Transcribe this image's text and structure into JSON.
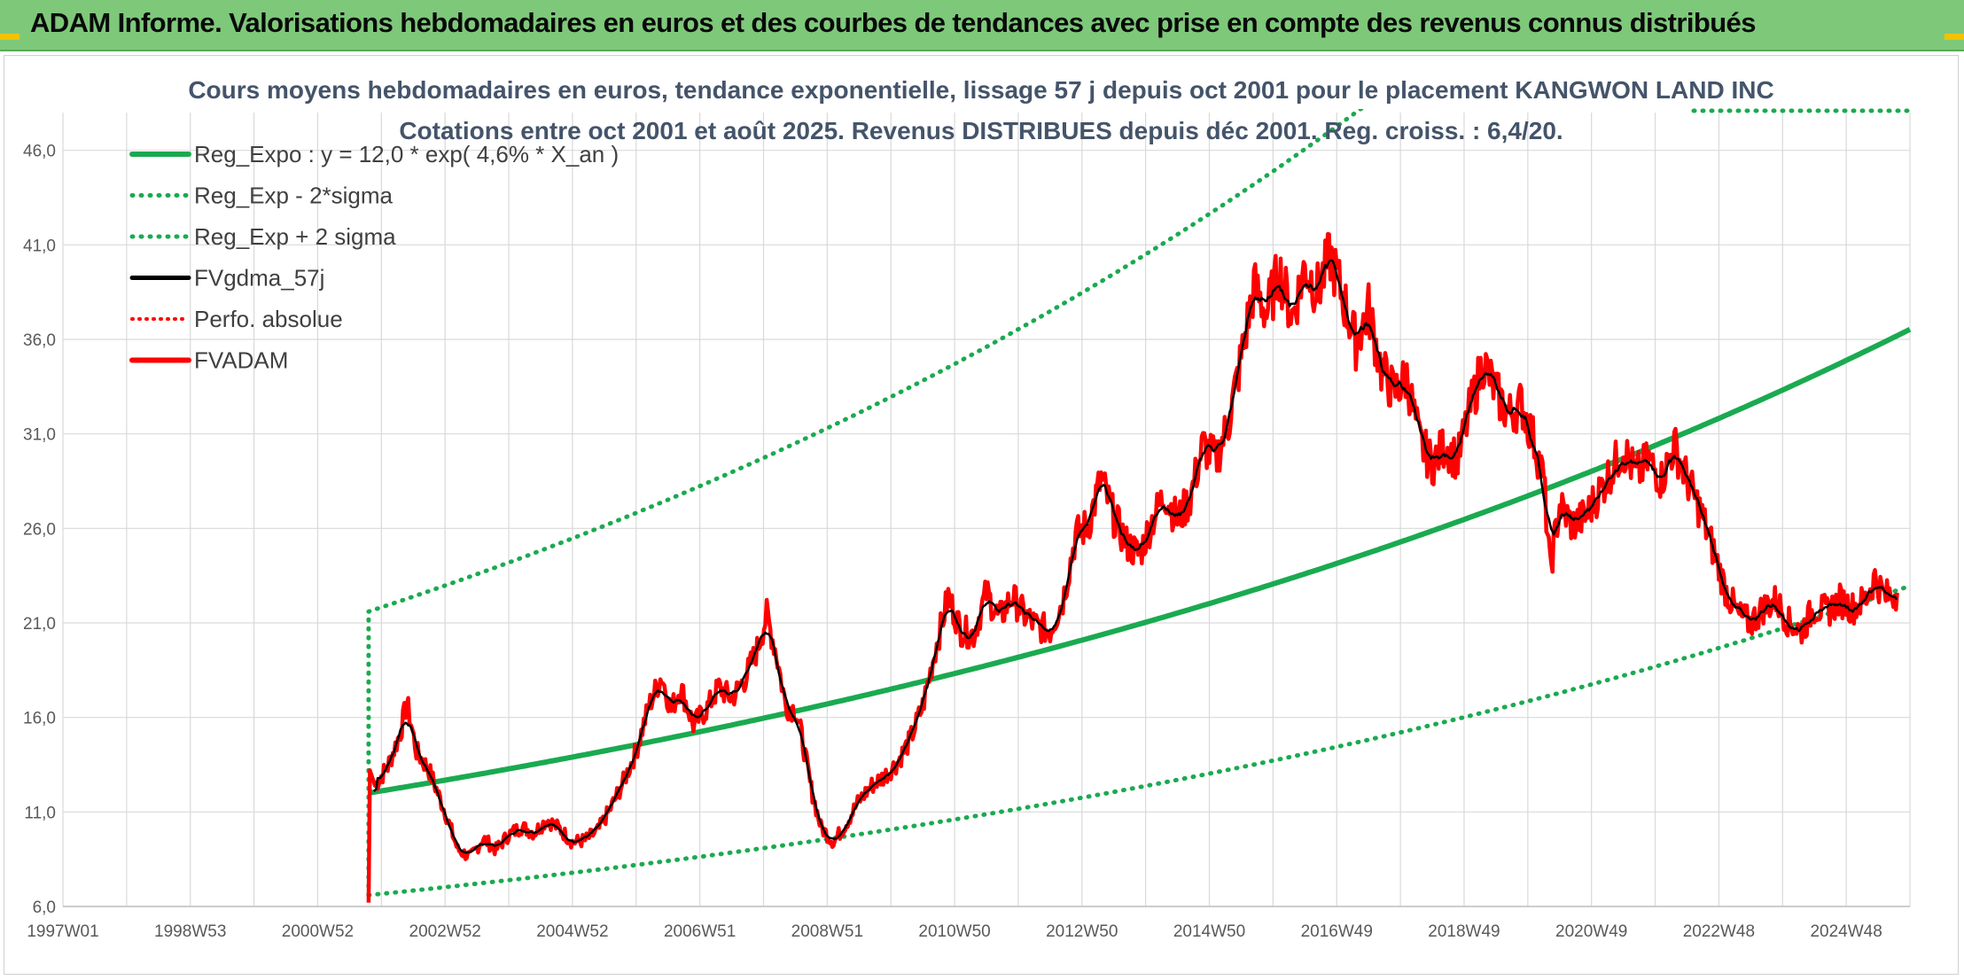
{
  "banner": {
    "title": "ADAM Informe. Valorisations hebdomadaires en euros et des courbes de tendances avec prise en compte des revenus connus distribués"
  },
  "colors": {
    "banner_bg": "#7ec87a",
    "trend": "#1aaa50",
    "price": "#ff0000",
    "smooth": "#000000",
    "grid": "#d9d9d9"
  },
  "chart_data": {
    "type": "line",
    "title_line1": "Cours moyens hebdomadaires en euros, tendance exponentielle, lissage 57 j depuis oct 2001 pour le placement KANGWON LAND INC",
    "title_line2": "Cotations entre oct 2001 et août 2025. Revenus DISTRIBUES depuis déc 2001. Reg. croiss. : 6,4/20.",
    "x_tick_labels": [
      "1997W01",
      "1998W53",
      "2000W52",
      "2002W52",
      "2004W52",
      "2006W51",
      "2008W51",
      "2010W50",
      "2012W50",
      "2014W50",
      "2016W49",
      "2018W49",
      "2020W49",
      "2022W48",
      "2024W48"
    ],
    "x_tick_years": [
      1997.0,
      1999.0,
      2001.0,
      2003.0,
      2005.0,
      2007.0,
      2009.0,
      2011.0,
      2013.0,
      2015.0,
      2017.0,
      2019.0,
      2021.0,
      2023.0,
      2025.0
    ],
    "x_range": [
      1997.0,
      2026.0
    ],
    "y_tick_labels": [
      "6,0",
      "11,0",
      "16,0",
      "21,0",
      "26,0",
      "31,0",
      "36,0",
      "41,0",
      "46,0"
    ],
    "y_ticks": [
      6,
      11,
      16,
      21,
      26,
      31,
      36,
      41,
      46
    ],
    "ylim": [
      6,
      48
    ],
    "grid": true,
    "legend_position": "top-left",
    "trend": {
      "start_year": 2001.8,
      "end_year": 2026.0,
      "a": 12.0,
      "b": 0.046,
      "sigma_low_start": 6.6,
      "sigma_high_start": 21.6
    },
    "series": [
      {
        "name": "Reg_Expo : y = 12,0 * exp( 4,6% *  X_an )",
        "style": "solid-green"
      },
      {
        "name": "Reg_Exp - 2*sigma",
        "style": "dotted-green"
      },
      {
        "name": "Reg_Exp + 2 sigma",
        "style": "dotted-green"
      },
      {
        "name": "FVgdma_57j",
        "style": "solid-black"
      },
      {
        "name": "Perfo. absolue",
        "style": "dotted-red"
      },
      {
        "name": "FVADAM",
        "style": "solid-red",
        "points": [
          [
            2001.8,
            6.2
          ],
          [
            2001.82,
            13.2
          ],
          [
            2001.9,
            12.4
          ],
          [
            2002.1,
            13.4
          ],
          [
            2002.3,
            15.2
          ],
          [
            2002.4,
            16.8
          ],
          [
            2002.55,
            14.2
          ],
          [
            2002.75,
            13.2
          ],
          [
            2003.0,
            11.0
          ],
          [
            2003.2,
            9.0
          ],
          [
            2003.4,
            8.6
          ],
          [
            2003.6,
            9.6
          ],
          [
            2003.8,
            9.0
          ],
          [
            2004.0,
            9.8
          ],
          [
            2004.2,
            10.2
          ],
          [
            2004.4,
            9.9
          ],
          [
            2004.6,
            10.6
          ],
          [
            2004.8,
            10.1
          ],
          [
            2005.0,
            9.4
          ],
          [
            2005.2,
            9.5
          ],
          [
            2005.4,
            10.0
          ],
          [
            2005.6,
            11.2
          ],
          [
            2005.8,
            12.6
          ],
          [
            2006.0,
            14.2
          ],
          [
            2006.2,
            16.6
          ],
          [
            2006.4,
            18.2
          ],
          [
            2006.55,
            16.4
          ],
          [
            2006.7,
            17.6
          ],
          [
            2006.9,
            15.6
          ],
          [
            2007.1,
            16.4
          ],
          [
            2007.3,
            17.6
          ],
          [
            2007.5,
            17.0
          ],
          [
            2007.7,
            18.0
          ],
          [
            2007.9,
            19.6
          ],
          [
            2008.05,
            21.4
          ],
          [
            2008.2,
            19.4
          ],
          [
            2008.35,
            16.6
          ],
          [
            2008.5,
            16.4
          ],
          [
            2008.6,
            15.0
          ],
          [
            2008.75,
            12.2
          ],
          [
            2008.9,
            10.2
          ],
          [
            2009.1,
            9.4
          ],
          [
            2009.3,
            10.4
          ],
          [
            2009.5,
            11.6
          ],
          [
            2009.7,
            12.4
          ],
          [
            2009.9,
            12.9
          ],
          [
            2010.1,
            13.6
          ],
          [
            2010.3,
            14.8
          ],
          [
            2010.5,
            16.6
          ],
          [
            2010.7,
            19.6
          ],
          [
            2010.9,
            22.4
          ],
          [
            2011.1,
            20.6
          ],
          [
            2011.3,
            20.4
          ],
          [
            2011.5,
            22.6
          ],
          [
            2011.7,
            21.2
          ],
          [
            2011.9,
            22.4
          ],
          [
            2012.1,
            21.4
          ],
          [
            2012.3,
            20.8
          ],
          [
            2012.5,
            20.6
          ],
          [
            2012.7,
            22.2
          ],
          [
            2012.9,
            25.6
          ],
          [
            2013.1,
            26.2
          ],
          [
            2013.3,
            28.6
          ],
          [
            2013.5,
            26.6
          ],
          [
            2013.7,
            25.2
          ],
          [
            2013.9,
            24.6
          ],
          [
            2014.1,
            26.4
          ],
          [
            2014.3,
            27.8
          ],
          [
            2014.5,
            26.4
          ],
          [
            2014.7,
            27.6
          ],
          [
            2014.9,
            30.4
          ],
          [
            2015.1,
            29.6
          ],
          [
            2015.3,
            31.6
          ],
          [
            2015.5,
            35.0
          ],
          [
            2015.7,
            38.8
          ],
          [
            2015.9,
            37.4
          ],
          [
            2016.1,
            39.6
          ],
          [
            2016.3,
            37.2
          ],
          [
            2016.5,
            39.8
          ],
          [
            2016.7,
            38.6
          ],
          [
            2016.9,
            40.4
          ],
          [
            2017.1,
            38.2
          ],
          [
            2017.3,
            35.8
          ],
          [
            2017.5,
            37.6
          ],
          [
            2017.7,
            34.4
          ],
          [
            2017.9,
            33.2
          ],
          [
            2018.1,
            34.0
          ],
          [
            2018.3,
            30.6
          ],
          [
            2018.5,
            29.4
          ],
          [
            2018.7,
            30.4
          ],
          [
            2018.9,
            29.6
          ],
          [
            2019.1,
            32.4
          ],
          [
            2019.3,
            34.8
          ],
          [
            2019.5,
            33.2
          ],
          [
            2019.7,
            32.0
          ],
          [
            2019.9,
            32.6
          ],
          [
            2020.1,
            30.6
          ],
          [
            2020.25,
            28.6
          ],
          [
            2020.35,
            23.8
          ],
          [
            2020.5,
            27.2
          ],
          [
            2020.7,
            26.2
          ],
          [
            2020.9,
            26.6
          ],
          [
            2021.1,
            27.8
          ],
          [
            2021.3,
            29.0
          ],
          [
            2021.5,
            30.2
          ],
          [
            2021.7,
            28.8
          ],
          [
            2021.9,
            29.6
          ],
          [
            2022.1,
            28.6
          ],
          [
            2022.3,
            30.4
          ],
          [
            2022.5,
            28.6
          ],
          [
            2022.7,
            27.0
          ],
          [
            2022.9,
            25.0
          ],
          [
            2023.1,
            22.8
          ],
          [
            2023.3,
            21.4
          ],
          [
            2023.5,
            21.0
          ],
          [
            2023.7,
            21.8
          ],
          [
            2023.9,
            22.2
          ],
          [
            2024.1,
            21.0
          ],
          [
            2024.3,
            20.6
          ],
          [
            2024.5,
            21.8
          ],
          [
            2024.7,
            21.6
          ],
          [
            2024.9,
            22.2
          ],
          [
            2025.1,
            21.8
          ],
          [
            2025.3,
            22.2
          ],
          [
            2025.45,
            23.4
          ],
          [
            2025.6,
            22.4
          ],
          [
            2025.8,
            22.6
          ]
        ]
      }
    ]
  }
}
